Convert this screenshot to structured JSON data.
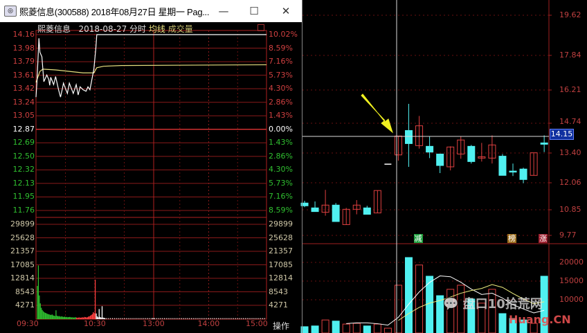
{
  "window": {
    "title": "熙菱信息(300588) 2018年08月27日 星期一 Pag...",
    "minimize_icon": "minimize-icon",
    "maximize_icon": "maximize-icon",
    "close_icon": "close-icon"
  },
  "intraday": {
    "stock_name": "熙菱信息",
    "date": "2018-08-27",
    "mode": "分时",
    "avg_line_label": "均线",
    "volume_label": "成交量",
    "price_labels": [
      "14.16",
      "13.98",
      "13.79",
      "13.61",
      "13.42",
      "13.24",
      "13.05",
      "12.87",
      "12.69",
      "12.50",
      "12.32",
      "12.13",
      "11.95",
      "11.76"
    ],
    "pct_labels": [
      "10.02%",
      "8.59%",
      "7.16%",
      "5.73%",
      "4.30%",
      "2.86%",
      "1.43%",
      "0.00%",
      "1.43%",
      "2.86%",
      "4.30%",
      "5.73%",
      "7.16%",
      "8.59%"
    ],
    "volume_labels": [
      "29899",
      "25628",
      "21357",
      "17085",
      "12814",
      "8543",
      "4271"
    ],
    "time_labels": [
      "09:30",
      "10:30",
      "13:00",
      "14:00",
      "15:00"
    ],
    "operation_label": "操作",
    "prev_close": 12.87,
    "price_range": [
      11.58,
      14.16
    ],
    "volume_max": 34170,
    "price_series": [
      [
        0,
        13.31
      ],
      [
        1,
        13.52
      ],
      [
        3,
        14.11
      ],
      [
        4,
        13.92
      ],
      [
        6,
        13.86
      ],
      [
        7,
        13.69
      ],
      [
        8,
        13.52
      ],
      [
        11,
        13.61
      ],
      [
        13,
        13.55
      ],
      [
        14,
        13.47
      ],
      [
        15,
        13.58
      ],
      [
        18,
        13.48
      ],
      [
        20,
        13.59
      ],
      [
        23,
        13.41
      ],
      [
        25,
        13.31
      ],
      [
        27,
        13.43
      ],
      [
        28,
        13.5
      ],
      [
        30,
        13.43
      ],
      [
        32,
        13.36
      ],
      [
        34,
        13.5
      ],
      [
        36,
        13.43
      ],
      [
        38,
        13.36
      ],
      [
        41,
        13.48
      ],
      [
        43,
        13.34
      ],
      [
        45,
        13.45
      ],
      [
        48,
        13.41
      ],
      [
        51,
        13.39
      ],
      [
        53,
        13.45
      ],
      [
        55,
        13.41
      ],
      [
        57,
        13.55
      ],
      [
        59,
        13.69
      ],
      [
        61,
        13.97
      ],
      [
        62,
        14.16
      ],
      [
        240,
        14.16
      ]
    ],
    "avg_series": [
      [
        0,
        13.51
      ],
      [
        4,
        13.66
      ],
      [
        7,
        13.69
      ],
      [
        20,
        13.68
      ],
      [
        34,
        13.66
      ],
      [
        48,
        13.64
      ],
      [
        59,
        13.64
      ],
      [
        62,
        13.71
      ],
      [
        69,
        13.73
      ],
      [
        87,
        13.74
      ],
      [
        240,
        13.75
      ]
    ],
    "volumes": [
      10500,
      17000,
      7500,
      5000,
      3600,
      2900,
      2500,
      2200,
      2000,
      1900,
      1700,
      1600,
      1500,
      1400,
      1300,
      1500,
      1200,
      1100,
      1000,
      2800,
      1100,
      900,
      1000,
      850,
      800,
      900,
      750,
      700,
      800,
      650,
      700,
      600,
      650,
      700,
      600,
      550,
      600,
      500,
      550,
      600,
      500,
      450,
      500,
      550,
      450,
      500,
      600,
      500,
      700,
      650,
      550,
      600,
      800,
      900,
      1100,
      1300,
      1600,
      2200,
      1900,
      12500,
      1800,
      900,
      600,
      3200,
      700,
      500,
      4100,
      500,
      400,
      300
    ],
    "volume_up_from": 40,
    "volume_white_from": 60,
    "colors": {
      "up": "#ff4040",
      "down": "#30c030",
      "price_line": "#ffffff",
      "avg_line": "#e8e080",
      "grid": "#b02020"
    }
  },
  "kline": {
    "price_axis_labels": [
      "19.62",
      "17.84",
      "16.21",
      "14.74",
      "13.40",
      "12.06",
      "10.85",
      "9.77"
    ],
    "current_price": "14.15",
    "volume_axis_labels": [
      "20000",
      "15000",
      "10000"
    ],
    "markers": [
      {
        "index": 11,
        "text": "减",
        "color": "#20a040"
      },
      {
        "index": 20,
        "text": "榜",
        "color": "#a07020"
      },
      {
        "index": 23,
        "text": "涨",
        "color": "#a02030"
      }
    ],
    "candles": [
      {
        "o": 11.14,
        "h": 11.24,
        "l": 10.96,
        "c": 11.02,
        "v": 2800
      },
      {
        "o": 10.93,
        "h": 11.21,
        "l": 10.77,
        "c": 10.77,
        "v": 3000
      },
      {
        "o": 10.74,
        "h": 11.73,
        "l": 10.59,
        "c": 11.05,
        "v": 4600
      },
      {
        "o": 11.05,
        "h": 11.14,
        "l": 10.34,
        "c": 10.34,
        "v": 4300
      },
      {
        "o": 10.21,
        "h": 10.93,
        "l": 10.21,
        "c": 10.87,
        "v": 3500
      },
      {
        "o": 10.87,
        "h": 11.27,
        "l": 10.65,
        "c": 11.05,
        "v": 3700
      },
      {
        "o": 10.93,
        "h": 11.02,
        "l": 10.65,
        "c": 10.65,
        "v": 3000
      },
      {
        "o": 10.71,
        "h": 11.7,
        "l": 10.71,
        "c": 11.7,
        "v": 3500
      },
      {
        "o": 12.88,
        "h": 12.88,
        "l": 12.88,
        "c": 12.88,
        "v": 2400
      },
      {
        "o": 13.31,
        "h": 14.15,
        "l": 13.04,
        "c": 14.15,
        "v": 13900
      },
      {
        "o": 14.4,
        "h": 15.58,
        "l": 12.76,
        "c": 13.81,
        "v": 21300
      },
      {
        "o": 13.72,
        "h": 15.05,
        "l": 13.59,
        "c": 14.62,
        "v": 19300
      },
      {
        "o": 13.69,
        "h": 14.12,
        "l": 13.16,
        "c": 13.44,
        "v": 16300
      },
      {
        "o": 13.35,
        "h": 13.35,
        "l": 12.48,
        "c": 12.82,
        "v": 11100
      },
      {
        "o": 12.76,
        "h": 13.69,
        "l": 12.6,
        "c": 13.66,
        "v": 12800
      },
      {
        "o": 13.35,
        "h": 14.12,
        "l": 13.13,
        "c": 13.97,
        "v": 13900
      },
      {
        "o": 13.69,
        "h": 13.75,
        "l": 12.91,
        "c": 13.0,
        "v": 10200
      },
      {
        "o": 13.16,
        "h": 13.84,
        "l": 13.0,
        "c": 13.22,
        "v": 9100
      },
      {
        "o": 13.16,
        "h": 14.18,
        "l": 12.91,
        "c": 13.75,
        "v": 12800
      },
      {
        "o": 13.25,
        "h": 13.35,
        "l": 12.38,
        "c": 12.38,
        "v": 6300
      },
      {
        "o": 12.57,
        "h": 12.91,
        "l": 12.35,
        "c": 12.54,
        "v": 5000
      },
      {
        "o": 12.66,
        "h": 12.72,
        "l": 12.04,
        "c": 12.2,
        "v": 4600
      },
      {
        "o": 12.38,
        "h": 13.41,
        "l": 12.38,
        "c": 13.41,
        "v": 3700
      },
      {
        "o": 13.84,
        "h": 14.18,
        "l": 13.44,
        "c": 13.78,
        "v": 16300
      }
    ],
    "colors": {
      "up": "#e04040",
      "down": "#50f0f0",
      "ma5": "#ffffff",
      "ma10": "#f0f080",
      "grid": "#a02020",
      "arrow": "#f0f020"
    }
  },
  "watermark": {
    "text": "盘口10拾荒网",
    "domain": "Huang.CN"
  }
}
